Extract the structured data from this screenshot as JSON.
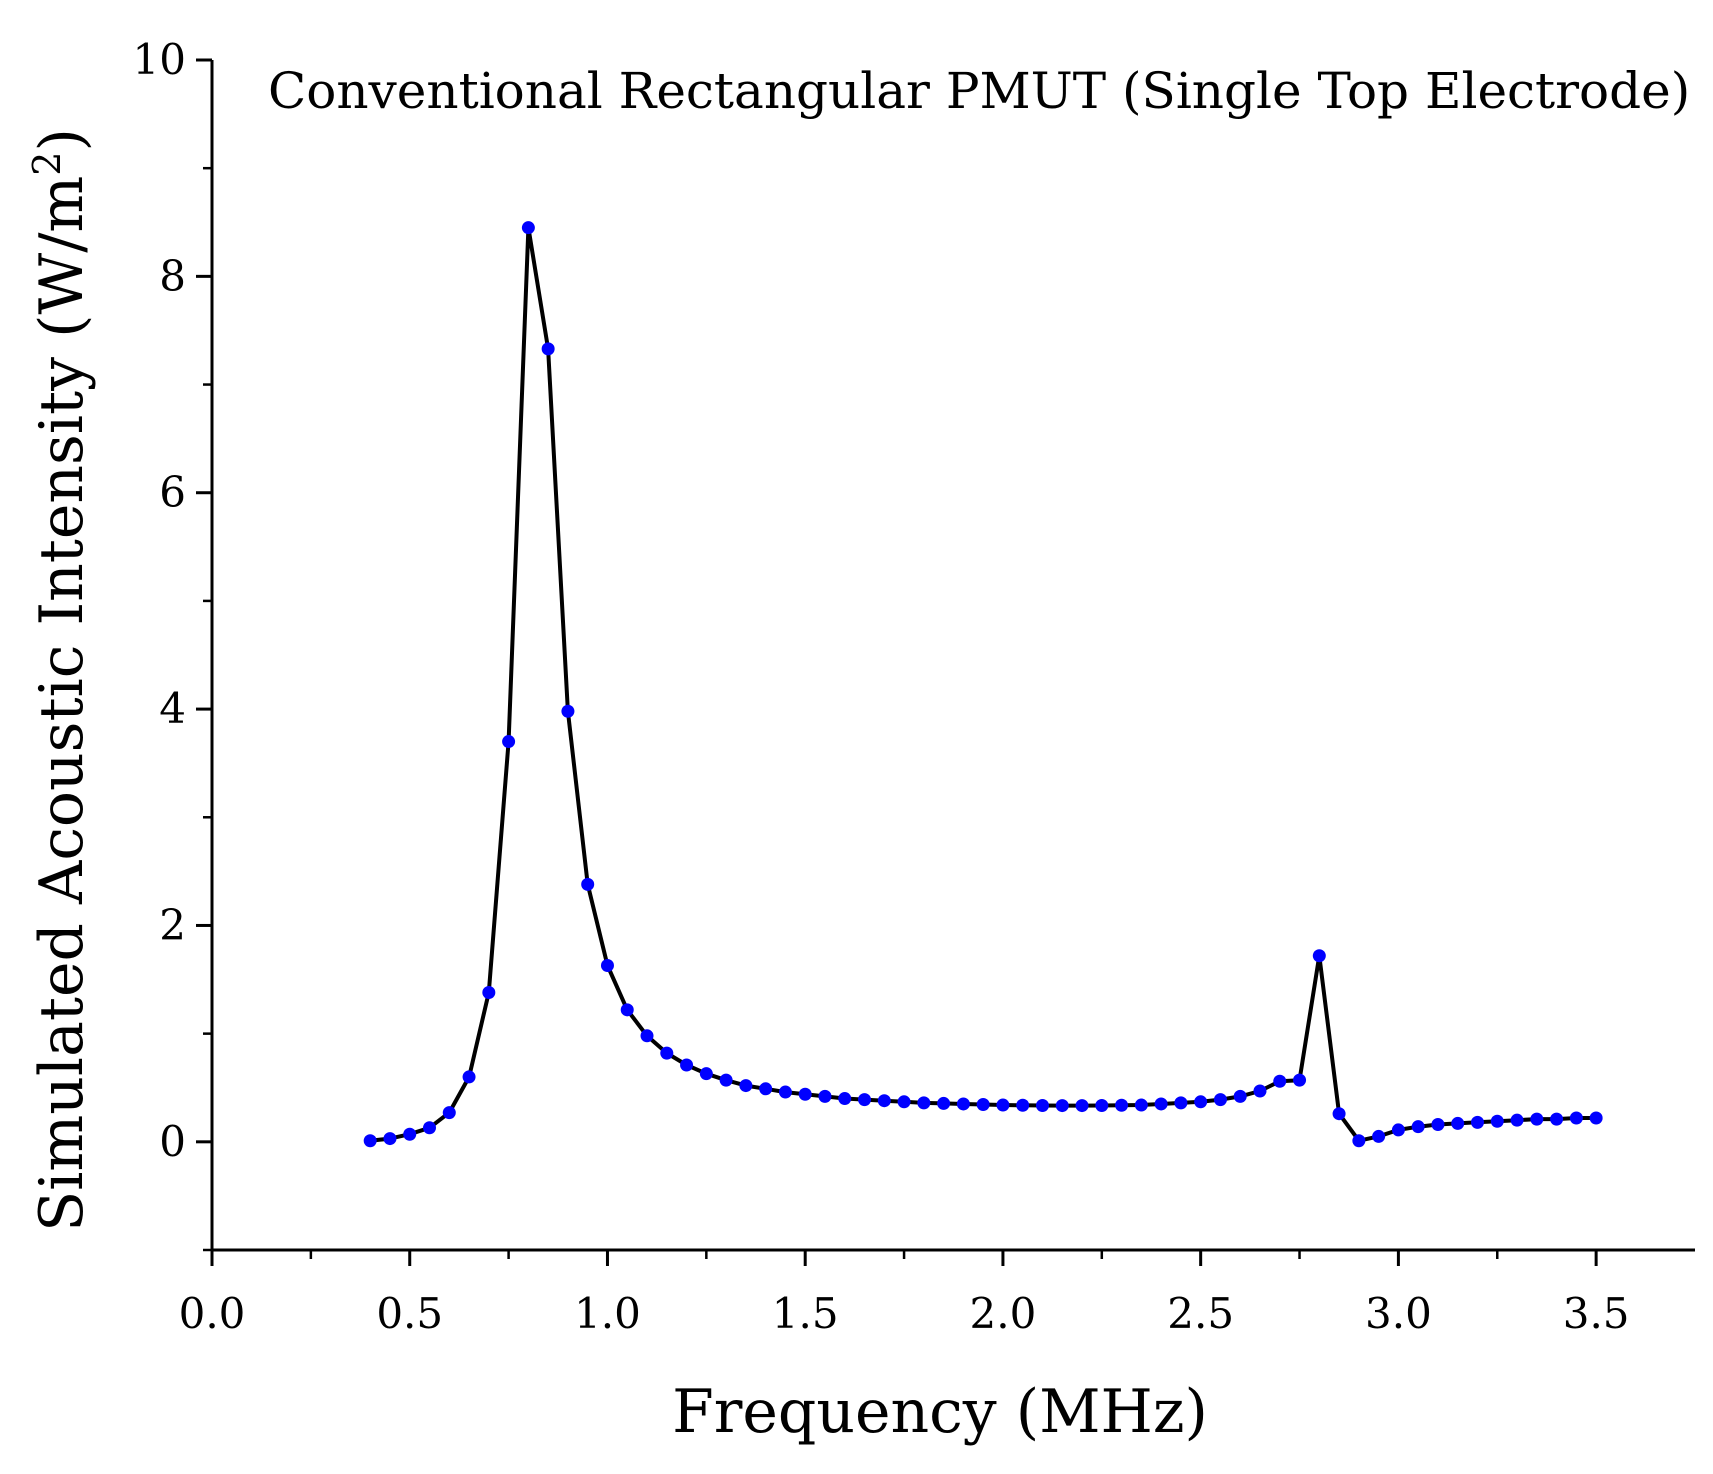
{
  "chart_data": {
    "type": "line",
    "title": "Conventional Rectangular PMUT (Single Top Electrode)",
    "xlabel": "Frequency (MHz)",
    "ylabel": "Simulated Acoustic Intensity (W/m",
    "ylabel_superscript": "2",
    "ylabel_close": ")",
    "xlim": [
      0.0,
      3.75
    ],
    "ylim": [
      -1.0,
      10.0
    ],
    "grid": false,
    "x_ticks": [
      0.0,
      0.5,
      1.0,
      1.5,
      2.0,
      2.5,
      3.0,
      3.5
    ],
    "x_tick_labels": [
      "0.0",
      "0.5",
      "1.0",
      "1.5",
      "2.0",
      "2.5",
      "3.0",
      "3.5"
    ],
    "y_ticks": [
      0,
      2,
      4,
      6,
      8,
      10
    ],
    "y_tick_labels": [
      "0",
      "2",
      "4",
      "6",
      "8",
      "10"
    ],
    "line_color": "#000000",
    "marker_color": "#0000ff",
    "series": [
      {
        "name": "Simulated Acoustic Intensity",
        "x": [
          0.4,
          0.45,
          0.5,
          0.55,
          0.6,
          0.65,
          0.7,
          0.75,
          0.8,
          0.85,
          0.9,
          0.95,
          1.0,
          1.05,
          1.1,
          1.15,
          1.2,
          1.25,
          1.3,
          1.35,
          1.4,
          1.45,
          1.5,
          1.55,
          1.6,
          1.65,
          1.7,
          1.75,
          1.8,
          1.85,
          1.9,
          1.95,
          2.0,
          2.05,
          2.1,
          2.15,
          2.2,
          2.25,
          2.3,
          2.35,
          2.4,
          2.45,
          2.5,
          2.55,
          2.6,
          2.65,
          2.7,
          2.75,
          2.8,
          2.85,
          2.9,
          2.95,
          3.0,
          3.05,
          3.1,
          3.15,
          3.2,
          3.25,
          3.3,
          3.35,
          3.4,
          3.45,
          3.5
        ],
        "y": [
          0.01,
          0.03,
          0.07,
          0.13,
          0.27,
          0.6,
          1.38,
          3.7,
          8.45,
          7.33,
          3.98,
          2.38,
          1.63,
          1.22,
          0.98,
          0.82,
          0.71,
          0.63,
          0.57,
          0.52,
          0.49,
          0.46,
          0.44,
          0.42,
          0.4,
          0.39,
          0.38,
          0.37,
          0.36,
          0.355,
          0.35,
          0.345,
          0.34,
          0.338,
          0.336,
          0.335,
          0.335,
          0.336,
          0.338,
          0.34,
          0.35,
          0.36,
          0.37,
          0.39,
          0.42,
          0.47,
          0.56,
          0.57,
          1.72,
          0.26,
          0.01,
          0.05,
          0.11,
          0.14,
          0.16,
          0.17,
          0.18,
          0.19,
          0.2,
          0.21,
          0.21,
          0.22,
          0.22
        ]
      }
    ]
  }
}
